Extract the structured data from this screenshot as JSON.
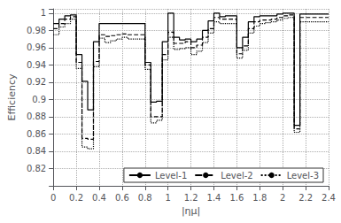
{
  "chart_data": {
    "type": "line",
    "xlabel": "|ημ|",
    "ylabel": "Efficiency",
    "xlim": [
      0,
      2.4
    ],
    "ylim": [
      0.8,
      1.005
    ],
    "xticks": [
      0,
      0.2,
      0.4,
      0.6,
      0.8,
      1.0,
      1.2,
      1.4,
      1.6,
      1.8,
      2.0,
      2.2,
      2.4
    ],
    "yticks": [
      0.82,
      0.84,
      0.86,
      0.88,
      0.9,
      0.92,
      0.94,
      0.96,
      0.98,
      1.0
    ],
    "grid": true,
    "legend": "lower right",
    "series": [
      {
        "name": "Level-1",
        "color": "black",
        "line_style": "solid",
        "x": [
          0.0,
          0.05,
          0.05,
          0.1,
          0.1,
          0.15,
          0.15,
          0.2,
          0.2,
          0.25,
          0.25,
          0.3,
          0.3,
          0.35,
          0.35,
          0.4,
          0.4,
          0.45,
          0.45,
          0.5,
          0.5,
          0.55,
          0.55,
          0.6,
          0.6,
          0.65,
          0.65,
          0.7,
          0.7,
          0.75,
          0.75,
          0.8,
          0.8,
          0.85,
          0.85,
          0.9,
          0.9,
          0.95,
          0.95,
          1.0,
          1.0,
          1.05,
          1.05,
          1.1,
          1.1,
          1.15,
          1.15,
          1.2,
          1.2,
          1.25,
          1.25,
          1.3,
          1.3,
          1.35,
          1.35,
          1.4,
          1.4,
          1.45,
          1.45,
          1.5,
          1.5,
          1.55,
          1.55,
          1.6,
          1.6,
          1.65,
          1.65,
          1.7,
          1.7,
          1.75,
          1.75,
          1.8,
          1.8,
          1.85,
          1.85,
          1.9,
          1.9,
          1.95,
          1.95,
          2.0,
          2.0,
          2.05,
          2.05,
          2.1,
          2.1,
          2.15,
          2.15,
          2.2,
          2.2,
          2.4
        ],
        "values": [
          0.988,
          0.988,
          0.993,
          0.993,
          0.997,
          0.997,
          0.998,
          0.998,
          0.952,
          0.952,
          0.921,
          0.921,
          0.888,
          0.888,
          0.967,
          0.967,
          0.988,
          0.988,
          0.988,
          0.988,
          0.988,
          0.988,
          0.988,
          0.988,
          0.988,
          0.988,
          0.988,
          0.988,
          0.988,
          0.988,
          0.988,
          0.988,
          0.943,
          0.943,
          0.897,
          0.897,
          0.898,
          0.898,
          0.967,
          0.967,
          1.0,
          1.0,
          0.972,
          0.972,
          0.969,
          0.969,
          0.97,
          0.97,
          0.967,
          0.967,
          0.97,
          0.97,
          0.98,
          0.98,
          0.991,
          0.991,
          1.0,
          1.0,
          0.996,
          0.996,
          0.997,
          0.997,
          0.997,
          0.997,
          0.96,
          0.96,
          0.972,
          0.972,
          0.99,
          0.99,
          0.996,
          0.996,
          0.997,
          0.997,
          0.997,
          0.997,
          0.997,
          0.997,
          0.999,
          0.999,
          1.0,
          1.0,
          1.0,
          1.0,
          0.87,
          0.87,
          0.999,
          0.999,
          0.999,
          0.999
        ]
      },
      {
        "name": "Level-2",
        "color": "black",
        "line_style": "dashed",
        "x": [
          0.0,
          0.05,
          0.05,
          0.1,
          0.1,
          0.15,
          0.15,
          0.2,
          0.2,
          0.25,
          0.25,
          0.3,
          0.3,
          0.35,
          0.35,
          0.4,
          0.4,
          0.45,
          0.45,
          0.5,
          0.5,
          0.55,
          0.55,
          0.6,
          0.6,
          0.65,
          0.65,
          0.7,
          0.7,
          0.75,
          0.75,
          0.8,
          0.8,
          0.85,
          0.85,
          0.9,
          0.9,
          0.95,
          0.95,
          1.0,
          1.0,
          1.05,
          1.05,
          1.1,
          1.1,
          1.15,
          1.15,
          1.2,
          1.2,
          1.25,
          1.25,
          1.3,
          1.3,
          1.35,
          1.35,
          1.4,
          1.4,
          1.45,
          1.45,
          1.5,
          1.5,
          1.55,
          1.55,
          1.6,
          1.6,
          1.65,
          1.65,
          1.7,
          1.7,
          1.75,
          1.75,
          1.8,
          1.8,
          1.85,
          1.85,
          1.9,
          1.9,
          1.95,
          1.95,
          2.0,
          2.0,
          2.05,
          2.05,
          2.1,
          2.1,
          2.15,
          2.15,
          2.2,
          2.2,
          2.4
        ],
        "values": [
          0.982,
          0.982,
          0.988,
          0.988,
          0.993,
          0.993,
          0.996,
          0.996,
          0.943,
          0.943,
          0.855,
          0.855,
          0.854,
          0.854,
          0.944,
          0.944,
          0.975,
          0.975,
          0.973,
          0.973,
          0.974,
          0.974,
          0.975,
          0.975,
          0.976,
          0.976,
          0.975,
          0.975,
          0.975,
          0.975,
          0.975,
          0.975,
          0.94,
          0.94,
          0.88,
          0.88,
          0.88,
          0.88,
          0.952,
          0.952,
          0.978,
          0.978,
          0.965,
          0.965,
          0.965,
          0.965,
          0.967,
          0.967,
          0.96,
          0.96,
          0.963,
          0.963,
          0.972,
          0.972,
          0.982,
          0.982,
          0.995,
          0.995,
          0.993,
          0.993,
          0.993,
          0.993,
          0.993,
          0.993,
          0.953,
          0.953,
          0.962,
          0.962,
          0.982,
          0.982,
          0.99,
          0.99,
          0.992,
          0.992,
          0.992,
          0.992,
          0.993,
          0.993,
          0.995,
          0.995,
          0.997,
          0.997,
          0.998,
          0.998,
          0.866,
          0.866,
          0.995,
          0.995,
          0.995,
          0.995
        ]
      },
      {
        "name": "Level-3",
        "color": "black",
        "line_style": "dotted",
        "x": [
          0.0,
          0.05,
          0.05,
          0.1,
          0.1,
          0.15,
          0.15,
          0.2,
          0.2,
          0.25,
          0.25,
          0.3,
          0.3,
          0.35,
          0.35,
          0.4,
          0.4,
          0.45,
          0.45,
          0.5,
          0.5,
          0.55,
          0.55,
          0.6,
          0.6,
          0.65,
          0.65,
          0.7,
          0.7,
          0.75,
          0.75,
          0.8,
          0.8,
          0.85,
          0.85,
          0.9,
          0.9,
          0.95,
          0.95,
          1.0,
          1.0,
          1.05,
          1.05,
          1.1,
          1.1,
          1.15,
          1.15,
          1.2,
          1.2,
          1.25,
          1.25,
          1.3,
          1.3,
          1.35,
          1.35,
          1.4,
          1.4,
          1.45,
          1.45,
          1.5,
          1.5,
          1.55,
          1.55,
          1.6,
          1.6,
          1.65,
          1.65,
          1.7,
          1.7,
          1.75,
          1.75,
          1.8,
          1.8,
          1.85,
          1.85,
          1.9,
          1.9,
          1.95,
          1.95,
          2.0,
          2.0,
          2.05,
          2.05,
          2.1,
          2.1,
          2.15,
          2.15,
          2.2,
          2.2,
          2.4
        ],
        "values": [
          0.975,
          0.975,
          0.984,
          0.984,
          0.988,
          0.988,
          0.993,
          0.993,
          0.936,
          0.936,
          0.845,
          0.845,
          0.843,
          0.843,
          0.938,
          0.938,
          0.971,
          0.971,
          0.966,
          0.966,
          0.968,
          0.968,
          0.97,
          0.97,
          0.972,
          0.972,
          0.97,
          0.97,
          0.97,
          0.97,
          0.97,
          0.97,
          0.935,
          0.935,
          0.873,
          0.873,
          0.876,
          0.876,
          0.946,
          0.946,
          0.972,
          0.972,
          0.958,
          0.958,
          0.959,
          0.959,
          0.96,
          0.96,
          0.952,
          0.952,
          0.956,
          0.956,
          0.966,
          0.966,
          0.977,
          0.977,
          0.99,
          0.99,
          0.988,
          0.988,
          0.988,
          0.988,
          0.988,
          0.988,
          0.948,
          0.948,
          0.957,
          0.957,
          0.977,
          0.977,
          0.985,
          0.985,
          0.988,
          0.988,
          0.989,
          0.989,
          0.99,
          0.99,
          0.992,
          0.992,
          0.994,
          0.994,
          0.995,
          0.995,
          0.862,
          0.862,
          0.99,
          0.99,
          0.99,
          0.99
        ]
      }
    ]
  }
}
